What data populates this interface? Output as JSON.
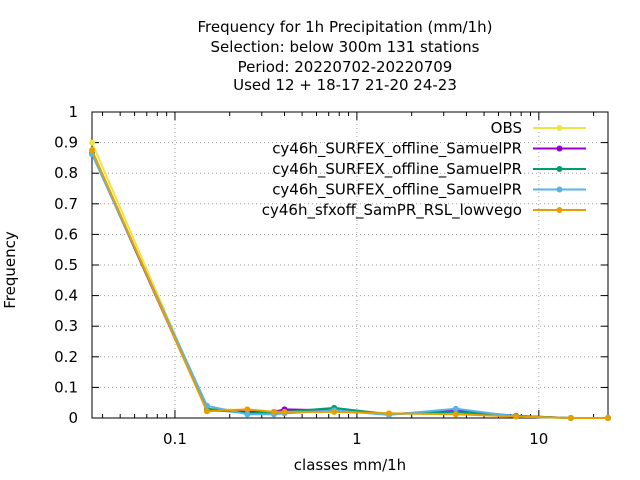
{
  "chart_data": {
    "type": "line",
    "title": [
      "Frequency  for 1h Precipitation (mm/1h)",
      "Selection: below 300m    131 stations",
      "Period: 20220702-20220709",
      "Used  12 + 18-17 21-20 24-23"
    ],
    "xlabel": "classes mm/1h",
    "ylabel": "Frequency",
    "x_scale": "log",
    "xlim": [
      0.035,
      24
    ],
    "ylim": [
      0,
      1
    ],
    "x_tick_labels": [
      "0.1",
      "1",
      "10"
    ],
    "y_tick_labels": [
      "0",
      "0.1",
      "0.2",
      "0.3",
      "0.4",
      "0.5",
      "0.6",
      "0.7",
      "0.8",
      "0.9",
      "1"
    ],
    "grid": true,
    "legend_position": "top-right",
    "x": [
      0.035,
      0.15,
      0.25,
      0.35,
      0.4,
      0.75,
      1.5,
      3.5,
      7.5,
      15,
      24
    ],
    "series": [
      {
        "name": "OBS",
        "color": "#f0e442",
        "values": [
          0.9,
          0.03,
          0.025,
          0.02,
          0.02,
          0.03,
          0.015,
          0.015,
          0.005,
          0.0,
          0.0
        ]
      },
      {
        "name": "cy46h_SURFEX_offline_SamuelPR",
        "color": "#9400d3",
        "values": [
          0.865,
          0.025,
          0.02,
          0.02,
          0.028,
          0.025,
          0.012,
          0.025,
          0.007,
          0.0,
          0.0
        ]
      },
      {
        "name": "cy46h_SURFEX_offline_SamuelPR",
        "color": "#009e73",
        "values": [
          0.865,
          0.03,
          0.015,
          0.018,
          0.02,
          0.033,
          0.012,
          0.02,
          0.007,
          0.0,
          0.0
        ]
      },
      {
        "name": "cy46h_SURFEX_offline_SamuelPR",
        "color": "#56b4e9",
        "values": [
          0.862,
          0.04,
          0.012,
          0.012,
          0.015,
          0.025,
          0.01,
          0.03,
          0.005,
          0.0,
          0.0
        ]
      },
      {
        "name": "cy46h_sfxoff_SamPR_RSL_lowvego",
        "color": "#e69f00",
        "values": [
          0.875,
          0.022,
          0.028,
          0.02,
          0.02,
          0.02,
          0.015,
          0.012,
          0.005,
          0.0,
          0.0
        ]
      }
    ]
  }
}
